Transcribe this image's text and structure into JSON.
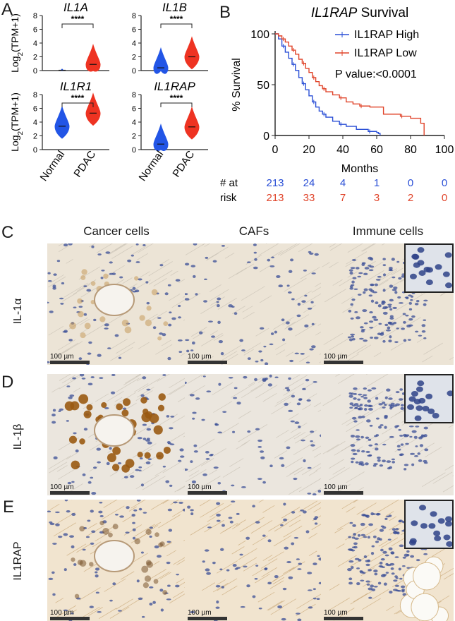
{
  "panels": {
    "A": "A",
    "B": "B",
    "C": "C",
    "D": "D",
    "E": "E"
  },
  "panel_a": {
    "ylabel_main": "Log",
    "ylabel_sub": "2",
    "ylabel_rest": "(TPM+1)",
    "sig": "****",
    "groups": [
      "Normal",
      "PDAC"
    ]
  },
  "chart_data": [
    {
      "type": "violin",
      "title": "IL1A",
      "ylim": [
        0,
        8
      ],
      "yticks": [
        0,
        2,
        4,
        6,
        8
      ],
      "categories": [
        "Normal",
        "PDAC"
      ],
      "series": [
        {
          "values": [
            0.05,
            0.9
          ]
        }
      ],
      "significance": "****"
    },
    {
      "type": "violin",
      "title": "IL1B",
      "ylim": [
        0,
        8
      ],
      "yticks": [
        0,
        2,
        4,
        6,
        8
      ],
      "categories": [
        "Normal",
        "PDAC"
      ],
      "series": [
        {
          "values": [
            0.4,
            2.0
          ]
        }
      ],
      "significance": "****"
    },
    {
      "type": "violin",
      "title": "IL1R1",
      "ylim": [
        0,
        8
      ],
      "yticks": [
        0,
        2,
        4,
        6,
        8
      ],
      "categories": [
        "Normal",
        "PDAC"
      ],
      "series": [
        {
          "values": [
            3.4,
            5.3
          ]
        }
      ],
      "significance": "****"
    },
    {
      "type": "violin",
      "title": "IL1RAP",
      "ylim": [
        0,
        8
      ],
      "yticks": [
        0,
        2,
        4,
        6,
        8
      ],
      "categories": [
        "Normal",
        "PDAC"
      ],
      "series": [
        {
          "values": [
            0.8,
            3.3
          ]
        }
      ],
      "significance": "****"
    },
    {
      "type": "line",
      "title": "IL1RAP Survival",
      "title_italic_part": "IL1RAP",
      "title_rest": " Survival",
      "xlabel": "Months",
      "ylabel": "% Survival",
      "xlim": [
        0,
        100
      ],
      "ylim": [
        0,
        100
      ],
      "xticks": [
        0,
        20,
        40,
        60,
        80,
        100
      ],
      "yticks": [
        0,
        50,
        100
      ],
      "pvalue": "P value:<0.0001",
      "series": [
        {
          "name": "IL1RAP High",
          "color": "#2a4fd6",
          "x": [
            0,
            2,
            4,
            6,
            8,
            10,
            12,
            14,
            16,
            18,
            20,
            22,
            24,
            26,
            28,
            30,
            34,
            38,
            42,
            48,
            55,
            60,
            61,
            62
          ],
          "y": [
            100,
            95,
            88,
            82,
            76,
            70,
            64,
            57,
            51,
            45,
            39,
            33,
            28,
            24,
            21,
            18,
            14,
            11,
            9,
            6,
            4,
            3,
            2,
            0
          ]
        },
        {
          "name": "IL1RAP Low",
          "color": "#e0442a",
          "x": [
            0,
            2,
            4,
            6,
            8,
            10,
            12,
            14,
            16,
            18,
            20,
            22,
            24,
            26,
            28,
            30,
            34,
            38,
            42,
            46,
            50,
            56,
            64,
            74,
            80,
            86,
            88
          ],
          "y": [
            100,
            98,
            95,
            92,
            88,
            84,
            80,
            75,
            71,
            66,
            62,
            57,
            53,
            49,
            46,
            43,
            40,
            37,
            33,
            31,
            29,
            28,
            21,
            19,
            17,
            12,
            0
          ]
        }
      ],
      "risk_table": {
        "label1": "# at",
        "label2": "risk",
        "high": [
          "213",
          "24",
          "4",
          "1",
          "0",
          "0"
        ],
        "low": [
          "213",
          "33",
          "7",
          "3",
          "2",
          "0"
        ]
      }
    }
  ],
  "ihc": {
    "columns": [
      "Cancer cells",
      "CAFs",
      "Immune cells"
    ],
    "rows": [
      "IL-1α",
      "IL-1β",
      "IL1RAP"
    ],
    "scale_label": "100 µm"
  }
}
